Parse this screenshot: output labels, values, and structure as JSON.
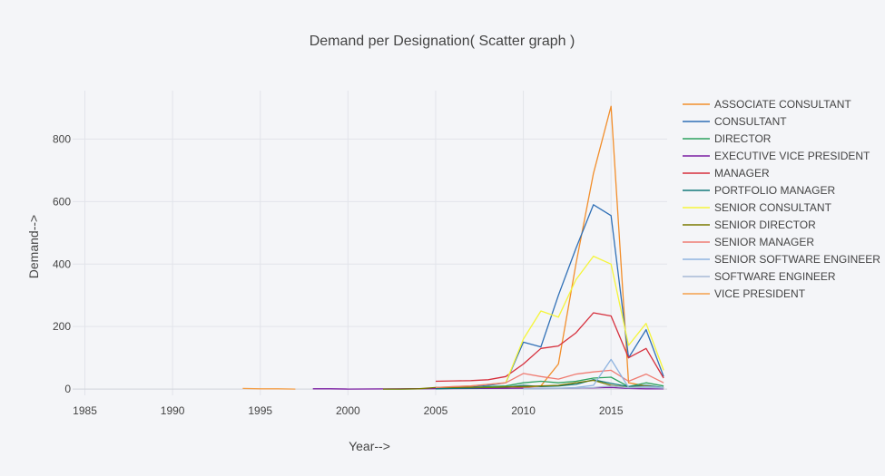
{
  "chart_data": {
    "type": "line",
    "title": "Demand per Designation( Scatter graph )",
    "xlabel": "Year-->",
    "ylabel": "Demand-->",
    "xlim": [
      1984.3,
      2018.2
    ],
    "ylim": [
      -20,
      955
    ],
    "xticks": [
      1985,
      1990,
      1995,
      2000,
      2005,
      2010,
      2015
    ],
    "yticks": [
      0,
      200,
      400,
      600,
      800
    ],
    "grid": true,
    "legend_position": "right",
    "series": [
      {
        "name": "ASSOCIATE CONSULTANT",
        "color": "#f28e2b",
        "x": [
          2005,
          2006,
          2007,
          2008,
          2009,
          2010,
          2011,
          2012,
          2013,
          2014,
          2015,
          2016,
          2017,
          2018
        ],
        "y": [
          2,
          2,
          3,
          3,
          3,
          5,
          10,
          80,
          400,
          690,
          905,
          20,
          10,
          5
        ]
      },
      {
        "name": "CONSULTANT",
        "color": "#2f6fb6",
        "x": [
          2005,
          2006,
          2007,
          2008,
          2009,
          2010,
          2011,
          2012,
          2013,
          2014,
          2015,
          2016,
          2017,
          2018
        ],
        "y": [
          3,
          5,
          8,
          12,
          20,
          150,
          135,
          300,
          450,
          590,
          555,
          100,
          190,
          40
        ]
      },
      {
        "name": "DIRECTOR",
        "color": "#2ca25f",
        "x": [
          2002,
          2003,
          2004,
          2005,
          2006,
          2007,
          2008,
          2009,
          2010,
          2011,
          2012,
          2013,
          2014,
          2015,
          2016,
          2017,
          2018
        ],
        "y": [
          0,
          0,
          1,
          2,
          3,
          5,
          8,
          10,
          20,
          25,
          20,
          25,
          35,
          38,
          8,
          20,
          10
        ]
      },
      {
        "name": "EXECUTIVE VICE PRESIDENT",
        "color": "#7b1fa2",
        "x": [
          1998,
          1999,
          2000,
          2010,
          2011,
          2012,
          2013,
          2014,
          2015,
          2016,
          2017,
          2018
        ],
        "y": [
          1,
          1,
          0,
          3,
          2,
          2,
          3,
          4,
          5,
          2,
          1,
          1
        ]
      },
      {
        "name": "MANAGER",
        "color": "#d62f3c",
        "x": [
          2005,
          2006,
          2007,
          2008,
          2009,
          2010,
          2011,
          2012,
          2013,
          2014,
          2015,
          2016,
          2017,
          2018
        ],
        "y": [
          25,
          26,
          27,
          30,
          40,
          80,
          130,
          138,
          180,
          244,
          234,
          100,
          130,
          35
        ]
      },
      {
        "name": "PORTFOLIO MANAGER",
        "color": "#137a7a",
        "x": [
          2005,
          2006,
          2007,
          2008,
          2009,
          2010,
          2011,
          2012,
          2013,
          2014,
          2015,
          2016,
          2017,
          2018
        ],
        "y": [
          1,
          2,
          3,
          5,
          6,
          12,
          8,
          10,
          15,
          30,
          18,
          8,
          12,
          5
        ]
      },
      {
        "name": "SENIOR CONSULTANT",
        "color": "#f5f53a",
        "x": [
          2005,
          2006,
          2007,
          2008,
          2009,
          2010,
          2011,
          2012,
          2013,
          2014,
          2015,
          2016,
          2017,
          2018
        ],
        "y": [
          5,
          8,
          10,
          15,
          20,
          160,
          250,
          230,
          350,
          425,
          400,
          140,
          210,
          60
        ]
      },
      {
        "name": "SENIOR DIRECTOR",
        "color": "#7a7a00",
        "x": [
          2002,
          2003,
          2004,
          2005,
          2006,
          2007,
          2008,
          2009,
          2010,
          2011,
          2012,
          2013,
          2014,
          2015,
          2016,
          2017,
          2018
        ],
        "y": [
          0,
          0,
          1,
          5,
          5,
          6,
          5,
          7,
          8,
          10,
          12,
          20,
          28,
          12,
          5,
          10,
          3
        ]
      },
      {
        "name": "SENIOR MANAGER",
        "color": "#ef7c72",
        "x": [
          2005,
          2006,
          2007,
          2008,
          2009,
          2010,
          2011,
          2012,
          2013,
          2014,
          2015,
          2016,
          2017,
          2018
        ],
        "y": [
          5,
          8,
          10,
          15,
          20,
          50,
          40,
          32,
          48,
          55,
          60,
          25,
          48,
          20
        ]
      },
      {
        "name": "SENIOR SOFTWARE ENGINEER",
        "color": "#8fb4e0",
        "x": [
          2010,
          2011,
          2012,
          2013,
          2014,
          2015,
          2016,
          2017,
          2018
        ],
        "y": [
          2,
          2,
          3,
          5,
          12,
          95,
          5,
          8,
          5
        ]
      },
      {
        "name": "SOFTWARE ENGINEER",
        "color": "#a6b9d6",
        "x": [
          2010,
          2011,
          2012,
          2013,
          2014,
          2015,
          2016,
          2017,
          2018
        ],
        "y": [
          1,
          1,
          2,
          3,
          5,
          10,
          4,
          5,
          3
        ]
      },
      {
        "name": "VICE PRESIDENT",
        "color": "#f4a04a",
        "x": [
          1994,
          1995,
          1996,
          1997
        ],
        "y": [
          2,
          1,
          1,
          0
        ]
      }
    ]
  }
}
